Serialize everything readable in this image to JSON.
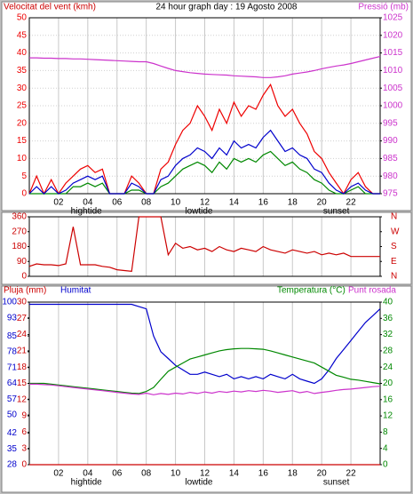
{
  "chart_data": [
    {
      "type": "line",
      "title": "24 hour graph day : 19 Agosto 2008",
      "ylabel": "Velocitat del vent (kmh)",
      "y2label": "Pressió (mb)",
      "x": [
        0,
        0.5,
        1,
        1.5,
        2,
        2.5,
        3,
        3.5,
        4,
        4.5,
        5,
        5.5,
        6,
        6.5,
        7,
        7.5,
        8,
        8.5,
        9,
        9.5,
        10,
        10.5,
        11,
        11.5,
        12,
        12.5,
        13,
        13.5,
        14,
        14.5,
        15,
        15.5,
        16,
        16.5,
        17,
        17.5,
        18,
        18.5,
        19,
        19.5,
        20,
        20.5,
        21,
        21.5,
        22,
        22.5,
        23,
        23.5,
        24
      ],
      "xlim": [
        0,
        24
      ],
      "xticks": [
        {
          "value": 2,
          "label": "02"
        },
        {
          "value": 4,
          "label": "04"
        },
        {
          "value": 6,
          "label": "06"
        },
        {
          "value": 8,
          "label": "08"
        },
        {
          "value": 10,
          "label": "10"
        },
        {
          "value": 12,
          "label": "12"
        },
        {
          "value": 14,
          "label": "14"
        },
        {
          "value": 16,
          "label": "16"
        },
        {
          "value": 18,
          "label": "18"
        },
        {
          "value": 20,
          "label": "20"
        },
        {
          "value": 22,
          "label": "22"
        }
      ],
      "ylim": [
        0,
        50
      ],
      "yticks": [
        0,
        5,
        10,
        15,
        20,
        25,
        30,
        35,
        40,
        45,
        50
      ],
      "y2lim": [
        975,
        1025
      ],
      "y2ticks": [
        975,
        980,
        985,
        990,
        995,
        1000,
        1005,
        1010,
        1015,
        1020,
        1025
      ],
      "grid": true,
      "annotations": [
        {
          "text": "hightide",
          "x": 3.9
        },
        {
          "text": "lowtide",
          "x": 11.6
        },
        {
          "text": "sunset",
          "x": 21
        }
      ],
      "series": [
        {
          "color": "#ee0000",
          "values": [
            0,
            5,
            0,
            4,
            0,
            3,
            5,
            7,
            8,
            6,
            7,
            0,
            0,
            0,
            5,
            3,
            0,
            0,
            7,
            9,
            14,
            18,
            20,
            25,
            22,
            18,
            24,
            20,
            26,
            22,
            25,
            24,
            28,
            31,
            25,
            22,
            24,
            20,
            17,
            12,
            10,
            6,
            3,
            0,
            4,
            6,
            2,
            0,
            0
          ]
        },
        {
          "color": "#008800",
          "values": [
            0,
            0,
            0,
            0,
            0,
            0,
            2,
            2,
            3,
            2,
            3,
            0,
            0,
            0,
            1,
            1,
            0,
            0,
            2,
            3,
            5,
            7,
            8,
            9,
            8,
            6,
            9,
            7,
            10,
            9,
            10,
            9,
            11,
            12,
            10,
            8,
            9,
            7,
            6,
            4,
            3,
            1,
            0,
            0,
            1,
            2,
            0,
            0,
            0
          ]
        },
        {
          "color": "#0000cc",
          "values": [
            0,
            2,
            0,
            2,
            0,
            1,
            3,
            4,
            5,
            4,
            5,
            0,
            0,
            0,
            3,
            2,
            0,
            0,
            4,
            5,
            8,
            10,
            11,
            13,
            12,
            10,
            13,
            11,
            15,
            13,
            14,
            13,
            16,
            18,
            15,
            12,
            13,
            11,
            10,
            7,
            6,
            3,
            1,
            0,
            2,
            3,
            1,
            0,
            0
          ]
        },
        {
          "color": "#cc33cc",
          "axis": "y2",
          "values": [
            1013.6,
            1013.6,
            1013.5,
            1013.5,
            1013.4,
            1013.4,
            1013.3,
            1013.3,
            1013.2,
            1013.1,
            1013,
            1012.9,
            1012.8,
            1012.7,
            1012.6,
            1012.5,
            1012.5,
            1012,
            1011.3,
            1010.6,
            1010,
            1009.7,
            1009.4,
            1009.2,
            1009,
            1008.9,
            1008.8,
            1008.7,
            1008.5,
            1008.4,
            1008.3,
            1008.2,
            1008,
            1008,
            1008.2,
            1008.5,
            1009,
            1009.3,
            1009.6,
            1010,
            1010.5,
            1010.9,
            1011.3,
            1011.6,
            1012,
            1012.5,
            1013,
            1013.5,
            1014
          ]
        }
      ]
    },
    {
      "type": "line",
      "x": [
        0,
        0.5,
        1,
        1.5,
        2,
        2.5,
        3,
        3.5,
        4,
        4.5,
        5,
        5.5,
        6,
        6.5,
        7,
        7.5,
        8,
        8.5,
        9,
        9.5,
        10,
        10.5,
        11,
        11.5,
        12,
        12.5,
        13,
        13.5,
        14,
        14.5,
        15,
        15.5,
        16,
        16.5,
        17,
        17.5,
        18,
        18.5,
        19,
        19.5,
        20,
        20.5,
        21,
        21.5,
        22,
        22.5,
        23,
        23.5,
        24
      ],
      "xlim": [
        0,
        24
      ],
      "xticks": [
        2,
        4,
        6,
        8,
        10,
        12,
        14,
        16,
        18,
        20,
        22
      ],
      "ylim": [
        0,
        360
      ],
      "yticks": [
        0,
        90,
        180,
        270,
        360
      ],
      "y2lim": [
        0,
        360
      ],
      "y2ticks": [
        {
          "value": 0,
          "label": "N"
        },
        {
          "value": 90,
          "label": "E"
        },
        {
          "value": 180,
          "label": "S"
        },
        {
          "value": 270,
          "label": "W"
        },
        {
          "value": 360,
          "label": "N"
        }
      ],
      "grid": true,
      "series": [
        {
          "color": "#cc0000",
          "values": [
            60,
            75,
            70,
            70,
            65,
            75,
            300,
            70,
            70,
            70,
            60,
            55,
            40,
            35,
            30,
            360,
            360,
            360,
            360,
            130,
            200,
            170,
            180,
            160,
            170,
            150,
            180,
            160,
            150,
            170,
            160,
            150,
            180,
            160,
            150,
            140,
            160,
            150,
            140,
            150,
            130,
            140,
            130,
            140,
            120,
            120,
            120,
            120,
            120
          ]
        }
      ]
    },
    {
      "type": "line",
      "x": [
        0,
        0.5,
        1,
        1.5,
        2,
        2.5,
        3,
        3.5,
        4,
        4.5,
        5,
        5.5,
        6,
        6.5,
        7,
        7.5,
        8,
        8.5,
        9,
        9.5,
        10,
        10.5,
        11,
        11.5,
        12,
        12.5,
        13,
        13.5,
        14,
        14.5,
        15,
        15.5,
        16,
        16.5,
        17,
        17.5,
        18,
        18.5,
        19,
        19.5,
        20,
        20.5,
        21,
        21.5,
        22,
        22.5,
        23,
        23.5,
        24
      ],
      "xlim": [
        0,
        24
      ],
      "xticks": [
        {
          "value": 2,
          "label": "02"
        },
        {
          "value": 4,
          "label": "04"
        },
        {
          "value": 6,
          "label": "06"
        },
        {
          "value": 8,
          "label": "08"
        },
        {
          "value": 10,
          "label": "10"
        },
        {
          "value": 12,
          "label": "12"
        },
        {
          "value": 14,
          "label": "14"
        },
        {
          "value": 16,
          "label": "16"
        },
        {
          "value": 18,
          "label": "18"
        },
        {
          "value": 20,
          "label": "20"
        },
        {
          "value": 22,
          "label": "22"
        }
      ],
      "ylim": [
        0,
        30
      ],
      "yticks": [
        0,
        3,
        6,
        9,
        12,
        15,
        18,
        21,
        24,
        27,
        30
      ],
      "y3lim": [
        28,
        100
      ],
      "y3ticks": [
        28,
        35,
        42,
        50,
        57,
        64,
        71,
        78,
        85,
        93,
        100
      ],
      "y2lim": [
        0,
        40
      ],
      "y2ticks": [
        0,
        4,
        8,
        12,
        16,
        20,
        24,
        28,
        32,
        36,
        40
      ],
      "grid": true,
      "annotations": [
        {
          "text": "hightide",
          "x": 3.9
        },
        {
          "text": "lowtide",
          "x": 11.6
        },
        {
          "text": "sunset",
          "x": 21
        }
      ],
      "series": [
        {
          "name": "Pluja (mm)",
          "color": "#cc0000",
          "values": [
            0,
            0,
            0,
            0,
            0,
            0,
            0,
            0,
            0,
            0,
            0,
            0,
            0,
            0,
            0,
            0,
            0,
            0,
            0,
            0,
            0,
            0,
            0,
            0,
            0,
            0,
            0,
            0,
            0,
            0,
            0,
            0,
            0,
            0,
            0,
            0,
            0,
            0,
            0,
            0,
            0,
            0,
            0,
            0,
            0,
            0,
            0,
            0,
            0
          ]
        },
        {
          "name": "Humitat",
          "color": "#0000cc",
          "axis": "y3",
          "values": [
            99,
            99,
            99,
            99,
            99,
            99,
            99,
            99,
            99,
            99,
            99,
            99,
            99,
            99,
            99,
            98,
            97,
            85,
            78,
            75,
            72,
            70,
            68,
            68,
            69,
            68,
            67,
            68,
            66,
            67,
            66,
            67,
            66,
            68,
            67,
            66,
            68,
            66,
            65,
            64,
            66,
            70,
            75,
            79,
            83,
            87,
            91,
            94,
            97
          ]
        },
        {
          "name": "Temperatura (°C)",
          "color": "#008800",
          "axis": "y2",
          "values": [
            20,
            20,
            20,
            19.8,
            19.6,
            19.4,
            19.2,
            19,
            18.8,
            18.6,
            18.4,
            18.2,
            18,
            17.8,
            17.6,
            17.5,
            18,
            19,
            21,
            23,
            24,
            25,
            26,
            26.5,
            27,
            27.5,
            28,
            28.3,
            28.5,
            28.6,
            28.6,
            28.5,
            28.4,
            28,
            27.5,
            27,
            26.5,
            26,
            25.5,
            25,
            24,
            23,
            22,
            21.5,
            21,
            20.8,
            20.5,
            20.2,
            19.9
          ]
        },
        {
          "name": "Punt rosada",
          "color": "#cc33cc",
          "axis": "y2",
          "values": [
            19.8,
            19.8,
            19.7,
            19.6,
            19.4,
            19.2,
            19,
            18.8,
            18.6,
            18.4,
            18.2,
            18,
            17.8,
            17.6,
            17.4,
            17.3,
            17.6,
            17.2,
            17.5,
            17.3,
            17.6,
            17.4,
            17.8,
            17.5,
            17.9,
            17.6,
            18,
            17.8,
            18.1,
            17.9,
            18.2,
            18,
            18.3,
            18.1,
            17.8,
            18,
            18.2,
            17.7,
            18,
            17.5,
            17.8,
            18,
            18.3,
            18.5,
            18.6,
            18.8,
            19,
            19.2,
            19.3
          ]
        }
      ]
    }
  ]
}
